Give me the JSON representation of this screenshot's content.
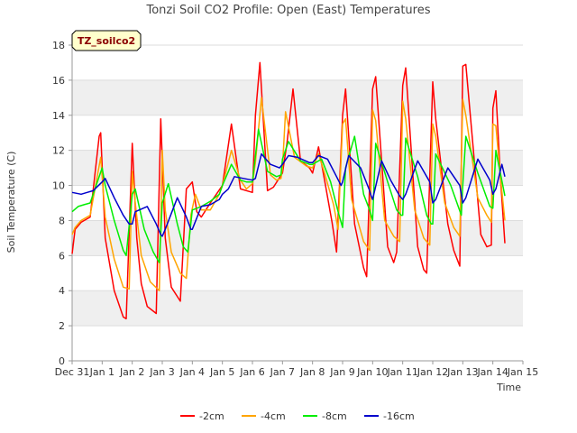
{
  "chart_data": {
    "type": "line",
    "title": "Tonzi Soil CO2 Profile: Open (East) Temperatures",
    "xlabel": "Time",
    "ylabel": "Soil Temperature (C)",
    "ylim": [
      0,
      18
    ],
    "yticks": [
      0,
      2,
      4,
      6,
      8,
      10,
      12,
      14,
      16,
      18
    ],
    "xlim": [
      0,
      15
    ],
    "xticks": [
      {
        "v": 0,
        "label": "Dec 31"
      },
      {
        "v": 1,
        "label": "Jan 1"
      },
      {
        "v": 2,
        "label": "Jan 2"
      },
      {
        "v": 3,
        "label": "Jan 3"
      },
      {
        "v": 4,
        "label": "Jan 4"
      },
      {
        "v": 5,
        "label": "Jan 5"
      },
      {
        "v": 6,
        "label": "Jan 6"
      },
      {
        "v": 7,
        "label": "Jan 7"
      },
      {
        "v": 8,
        "label": "Jan 8"
      },
      {
        "v": 9,
        "label": "Jan 9"
      },
      {
        "v": 10,
        "label": "Jan 10"
      },
      {
        "v": 11,
        "label": "Jan 11"
      },
      {
        "v": 12,
        "label": "Jan 12"
      },
      {
        "v": 13,
        "label": "Jan 13"
      },
      {
        "v": 14,
        "label": "Jan 14"
      },
      {
        "v": 15,
        "label": "Jan 15"
      }
    ],
    "grid": "horizontal bands",
    "legend": "bottom",
    "tag": "TZ_soilco2",
    "series": [
      {
        "name": "-2cm",
        "color": "#ff0000",
        "x": [
          0.0,
          0.1,
          0.3,
          0.6,
          0.9,
          0.95,
          1.1,
          1.4,
          1.7,
          1.8,
          2.0,
          2.15,
          2.3,
          2.5,
          2.8,
          2.95,
          3.1,
          3.3,
          3.6,
          3.8,
          4.0,
          4.15,
          4.3,
          4.6,
          5.0,
          5.3,
          5.6,
          6.0,
          6.1,
          6.25,
          6.5,
          6.7,
          7.0,
          7.15,
          7.35,
          7.6,
          7.9,
          8.0,
          8.2,
          8.4,
          8.65,
          8.8,
          9.0,
          9.1,
          9.4,
          9.7,
          9.8,
          10.0,
          10.1,
          10.5,
          10.7,
          10.8,
          11.0,
          11.1,
          11.5,
          11.7,
          11.8,
          12.0,
          12.1,
          12.5,
          12.7,
          12.9,
          13.0,
          13.1,
          13.6,
          13.8,
          13.95,
          14.0,
          14.1,
          14.25,
          14.4
        ],
        "values": [
          6.1,
          7.5,
          7.9,
          8.2,
          12.8,
          13.0,
          7.0,
          4.0,
          2.5,
          2.4,
          12.4,
          7.0,
          4.4,
          3.1,
          2.7,
          13.8,
          7.0,
          4.2,
          3.4,
          9.8,
          10.2,
          8.5,
          8.2,
          9.0,
          10.0,
          13.5,
          9.8,
          9.6,
          14.0,
          17.0,
          9.7,
          9.9,
          10.7,
          12.4,
          15.5,
          11.4,
          11.0,
          10.7,
          12.2,
          10.3,
          7.9,
          6.2,
          14.0,
          15.5,
          7.8,
          5.3,
          4.8,
          15.5,
          16.2,
          6.5,
          5.6,
          6.2,
          15.7,
          16.7,
          6.5,
          5.2,
          5.0,
          15.9,
          13.8,
          7.8,
          6.3,
          5.4,
          16.8,
          16.9,
          7.2,
          6.5,
          6.6,
          14.4,
          15.4,
          10.5,
          6.7
        ]
      },
      {
        "name": "-4cm",
        "color": "#ffa500",
        "x": [
          0.0,
          0.1,
          0.3,
          0.6,
          0.95,
          1.1,
          1.4,
          1.7,
          1.9,
          2.0,
          2.1,
          2.3,
          2.6,
          2.9,
          3.0,
          3.1,
          3.3,
          3.6,
          3.8,
          3.95,
          4.1,
          4.3,
          4.6,
          4.9,
          5.0,
          5.3,
          5.6,
          5.8,
          6.0,
          6.1,
          6.3,
          6.6,
          6.8,
          6.95,
          7.0,
          7.1,
          7.4,
          7.8,
          8.0,
          8.2,
          8.4,
          8.7,
          8.85,
          9.0,
          9.1,
          9.3,
          9.7,
          9.9,
          10.0,
          10.1,
          10.4,
          10.7,
          10.9,
          11.0,
          11.1,
          11.4,
          11.7,
          11.9,
          12.0,
          12.1,
          12.4,
          12.7,
          12.9,
          13.0,
          13.1,
          13.5,
          13.8,
          13.95,
          14.0,
          14.1,
          14.25,
          14.4
        ],
        "values": [
          7.2,
          7.6,
          8.0,
          8.3,
          11.6,
          8.2,
          5.8,
          4.2,
          4.1,
          10.8,
          9.0,
          6.0,
          4.5,
          4.0,
          12.0,
          8.6,
          6.2,
          5.0,
          4.7,
          8.3,
          9.5,
          8.6,
          8.6,
          9.5,
          10.0,
          12.0,
          10.3,
          9.8,
          10.1,
          11.3,
          15.0,
          10.6,
          10.3,
          10.4,
          11.0,
          14.2,
          11.6,
          11.1,
          11.0,
          11.8,
          10.7,
          8.9,
          7.5,
          13.5,
          13.8,
          9.2,
          6.8,
          6.3,
          14.3,
          13.7,
          8.0,
          7.1,
          6.8,
          14.8,
          13.8,
          8.6,
          7.0,
          6.6,
          13.5,
          12.8,
          9.0,
          7.6,
          7.1,
          14.9,
          14.0,
          9.3,
          8.3,
          7.9,
          13.5,
          13.4,
          10.5,
          8.0
        ]
      },
      {
        "name": "-8cm",
        "color": "#00ee00",
        "x": [
          0.0,
          0.2,
          0.4,
          0.6,
          1.0,
          1.1,
          1.4,
          1.7,
          1.8,
          2.0,
          2.1,
          2.4,
          2.7,
          2.9,
          3.0,
          3.2,
          3.5,
          3.7,
          3.85,
          4.0,
          4.3,
          4.6,
          4.9,
          5.0,
          5.3,
          5.6,
          5.8,
          6.0,
          6.2,
          6.5,
          6.8,
          6.95,
          7.0,
          7.2,
          7.6,
          7.9,
          8.0,
          8.3,
          8.6,
          8.85,
          9.0,
          9.1,
          9.4,
          9.7,
          9.9,
          10.0,
          10.1,
          10.5,
          10.8,
          10.95,
          11.0,
          11.1,
          11.5,
          11.8,
          11.95,
          12.0,
          12.1,
          12.6,
          12.95,
          13.0,
          13.1,
          13.5,
          13.9,
          14.0,
          14.1,
          14.4
        ],
        "values": [
          8.5,
          8.8,
          8.9,
          9.0,
          11.0,
          10.0,
          8.0,
          6.3,
          6.0,
          9.5,
          9.8,
          7.5,
          6.2,
          5.6,
          9.0,
          10.1,
          7.8,
          6.5,
          6.2,
          8.6,
          8.8,
          9.1,
          9.5,
          10.0,
          11.2,
          10.3,
          10.2,
          10.2,
          13.2,
          10.8,
          10.5,
          10.6,
          11.5,
          12.5,
          11.4,
          11.2,
          11.2,
          11.5,
          10.2,
          8.5,
          7.6,
          11.0,
          12.8,
          9.5,
          8.6,
          8.0,
          12.4,
          10.2,
          8.6,
          8.3,
          8.3,
          12.7,
          10.5,
          8.3,
          7.8,
          7.8,
          11.8,
          10.0,
          8.3,
          10.0,
          12.8,
          10.7,
          8.8,
          8.7,
          12.0,
          9.4
        ]
      },
      {
        "name": "-16cm",
        "color": "#0000cc",
        "x": [
          0.0,
          0.3,
          0.5,
          0.7,
          1.0,
          1.1,
          1.4,
          1.7,
          1.9,
          2.0,
          2.1,
          2.5,
          2.8,
          2.95,
          3.0,
          3.1,
          3.5,
          3.8,
          3.95,
          4.0,
          4.3,
          4.6,
          4.9,
          5.0,
          5.2,
          5.4,
          5.7,
          6.0,
          6.1,
          6.3,
          6.6,
          6.9,
          7.0,
          7.2,
          7.5,
          7.9,
          8.0,
          8.2,
          8.5,
          8.8,
          8.95,
          9.0,
          9.2,
          9.6,
          9.9,
          9.95,
          10.0,
          10.3,
          10.6,
          10.9,
          11.0,
          11.1,
          11.5,
          11.9,
          12.0,
          12.1,
          12.5,
          12.9,
          13.0,
          13.1,
          13.5,
          13.9,
          14.0,
          14.1,
          14.3,
          14.4
        ],
        "values": [
          9.6,
          9.5,
          9.6,
          9.7,
          10.2,
          10.4,
          9.3,
          8.3,
          7.8,
          7.8,
          8.5,
          8.8,
          7.8,
          7.2,
          7.1,
          7.5,
          9.3,
          8.2,
          7.5,
          7.5,
          8.8,
          8.9,
          9.2,
          9.5,
          9.8,
          10.5,
          10.4,
          10.3,
          10.4,
          11.8,
          11.2,
          11.0,
          11.2,
          11.7,
          11.6,
          11.3,
          11.3,
          11.7,
          11.5,
          10.5,
          10.0,
          10.2,
          11.7,
          11.0,
          9.7,
          9.4,
          9.2,
          11.4,
          10.3,
          9.4,
          9.2,
          9.5,
          11.4,
          10.2,
          9.0,
          9.2,
          11.0,
          10.0,
          9.0,
          9.3,
          11.5,
          10.3,
          9.5,
          9.8,
          11.2,
          10.5
        ]
      }
    ]
  }
}
